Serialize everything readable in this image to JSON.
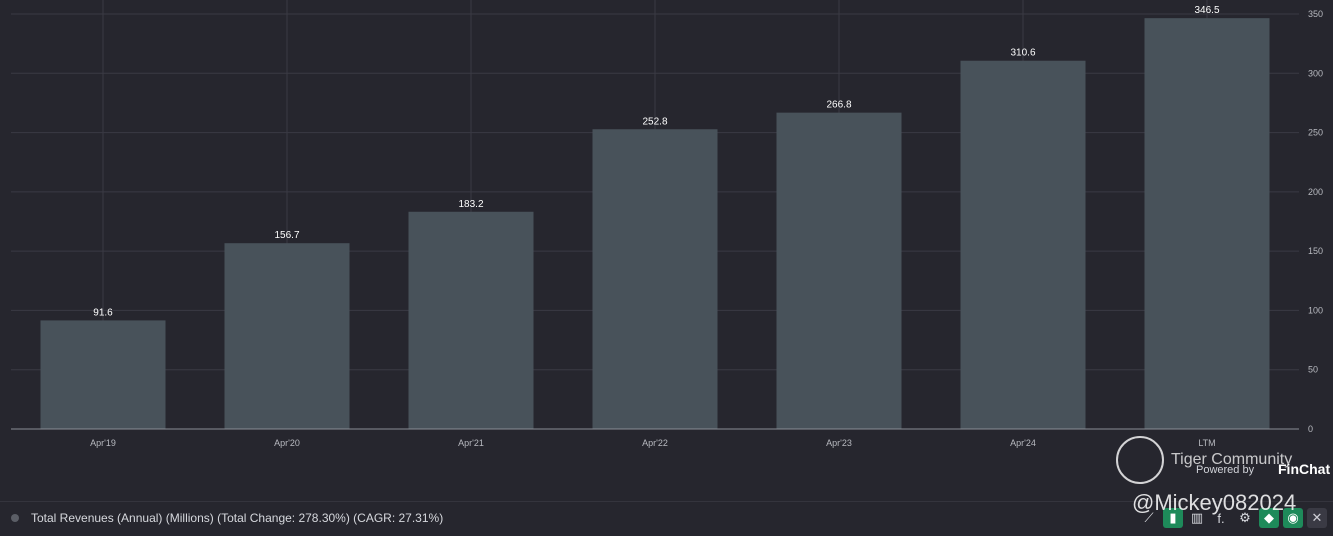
{
  "chart_data": {
    "type": "bar",
    "categories": [
      "Apr'19",
      "Apr'20",
      "Apr'21",
      "Apr'22",
      "Apr'23",
      "Apr'24",
      "LTM"
    ],
    "values": [
      91.6,
      156.7,
      183.2,
      252.8,
      266.8,
      310.6,
      346.5
    ],
    "value_labels": [
      "91.6",
      "156.7",
      "183.2",
      "252.8",
      "266.8",
      "310.6",
      "346.5"
    ],
    "yticks": [
      0,
      50,
      100,
      150,
      200,
      250,
      300,
      350
    ],
    "ylim": [
      0,
      350
    ],
    "grid": true,
    "bar_color": "#48525a"
  },
  "legend": {
    "label": "Total Revenues (Annual) (Millions) (Total Change: 278.30%) (CAGR: 27.31%)"
  },
  "watermark": {
    "title": "Tiger Community",
    "powered_by": "Powered by",
    "brand": "FinChat",
    "handle": "@Mickey082024"
  },
  "toolbar": {
    "icons": [
      "line-chart-icon",
      "bar-chart-icon",
      "column-chart-icon",
      "text-icon",
      "gear-icon",
      "tag-icon",
      "eye-icon",
      "close-icon"
    ]
  }
}
